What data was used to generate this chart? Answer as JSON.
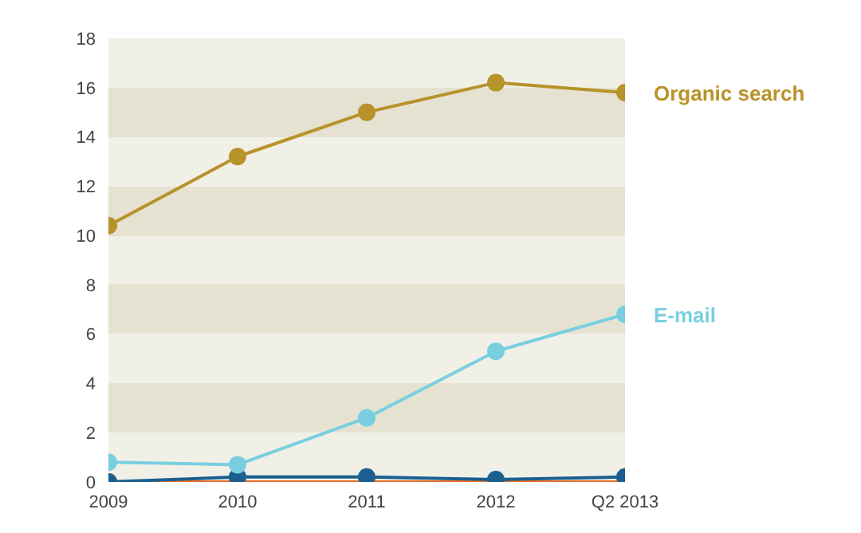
{
  "chart_data": {
    "type": "line",
    "categories": [
      "2009",
      "2010",
      "2011",
      "2012",
      "Q2 2013"
    ],
    "series": [
      {
        "name": "Organic search",
        "color": "#b8922a",
        "values": [
          10.4,
          13.2,
          15.0,
          16.2,
          15.8
        ]
      },
      {
        "name": "E-mail",
        "color": "#79cfe0",
        "values": [
          0.8,
          0.7,
          2.6,
          5.3,
          6.8
        ]
      },
      {
        "color": "#1a5f8f",
        "values": [
          0.0,
          0.2,
          0.2,
          0.1,
          0.2
        ]
      },
      {
        "color": "#e8702a",
        "values": [
          0.0,
          0.0,
          0.0,
          0.0,
          0.0
        ]
      }
    ],
    "ylim": [
      0,
      18
    ],
    "yticks": [
      0,
      2,
      4,
      6,
      8,
      10,
      12,
      14,
      16,
      18
    ],
    "marker": "circle",
    "line_style": "solid"
  }
}
